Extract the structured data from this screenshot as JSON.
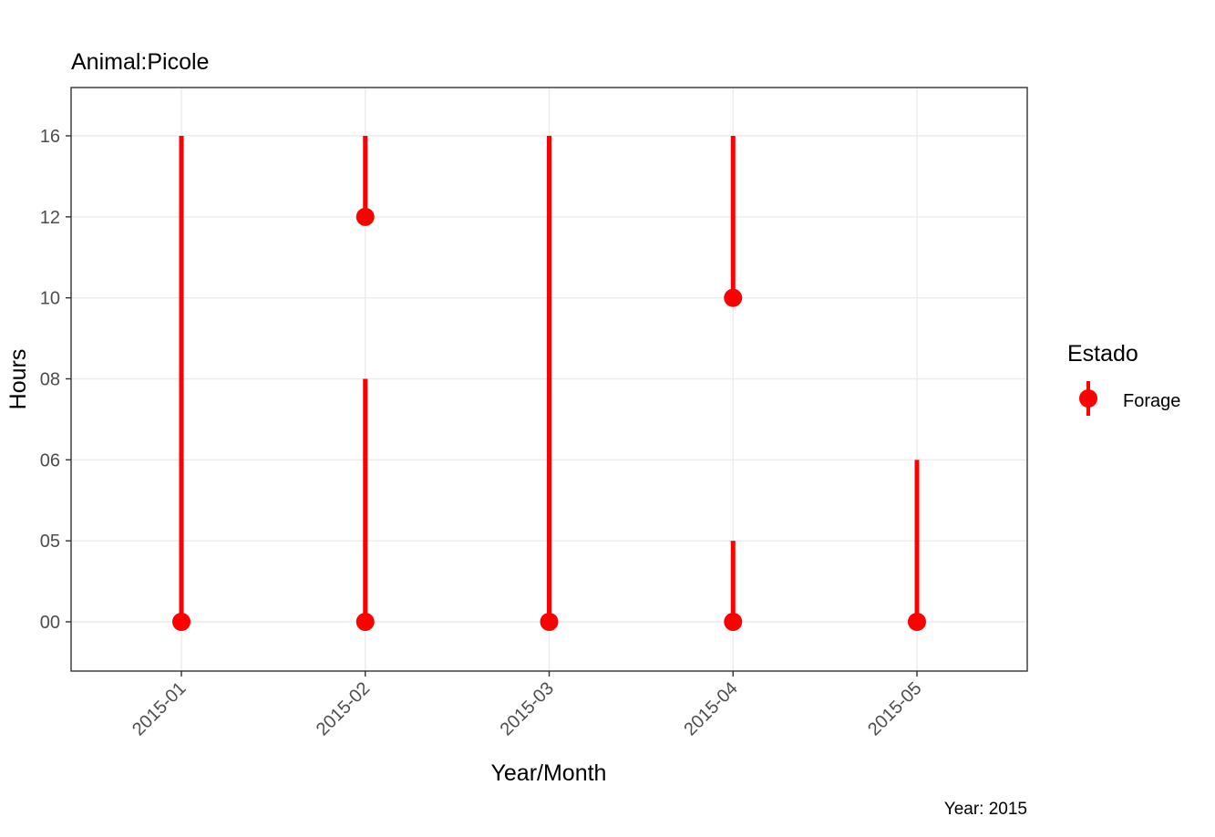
{
  "chart_data": {
    "type": "linerange",
    "title": "Animal:Picole",
    "xlabel": "Year/Month",
    "ylabel": "Hours",
    "caption": "Year: 2015",
    "categories": [
      "2015-01",
      "2015-02",
      "2015-03",
      "2015-04",
      "2015-05"
    ],
    "y_ticks": [
      "00",
      "05",
      "06",
      "08",
      "10",
      "12",
      "16"
    ],
    "ranges": [
      {
        "x": "2015-01",
        "ymin": "00",
        "ymax": "16"
      },
      {
        "x": "2015-02",
        "ymin": "00",
        "ymax": "08"
      },
      {
        "x": "2015-02",
        "ymin": "12",
        "ymax": "16"
      },
      {
        "x": "2015-03",
        "ymin": "00",
        "ymax": "16"
      },
      {
        "x": "2015-04",
        "ymin": "00",
        "ymax": "05"
      },
      {
        "x": "2015-04",
        "ymin": "10",
        "ymax": "16"
      },
      {
        "x": "2015-05",
        "ymin": "00",
        "ymax": "06"
      }
    ],
    "points": [
      {
        "x": "2015-01",
        "y": "00"
      },
      {
        "x": "2015-02",
        "y": "00"
      },
      {
        "x": "2015-02",
        "y": "12"
      },
      {
        "x": "2015-03",
        "y": "00"
      },
      {
        "x": "2015-04",
        "y": "00"
      },
      {
        "x": "2015-04",
        "y": "10"
      },
      {
        "x": "2015-05",
        "y": "00"
      }
    ],
    "legend": {
      "title": "Estado",
      "entries": [
        {
          "name": "Forage",
          "color": "#ff0000"
        }
      ],
      "position": "right"
    },
    "colors": {
      "series": "#ff0000",
      "grid": "#ebebeb",
      "panel_border": "#333333",
      "tick_text": "#4d4d4d"
    },
    "grid": true
  }
}
